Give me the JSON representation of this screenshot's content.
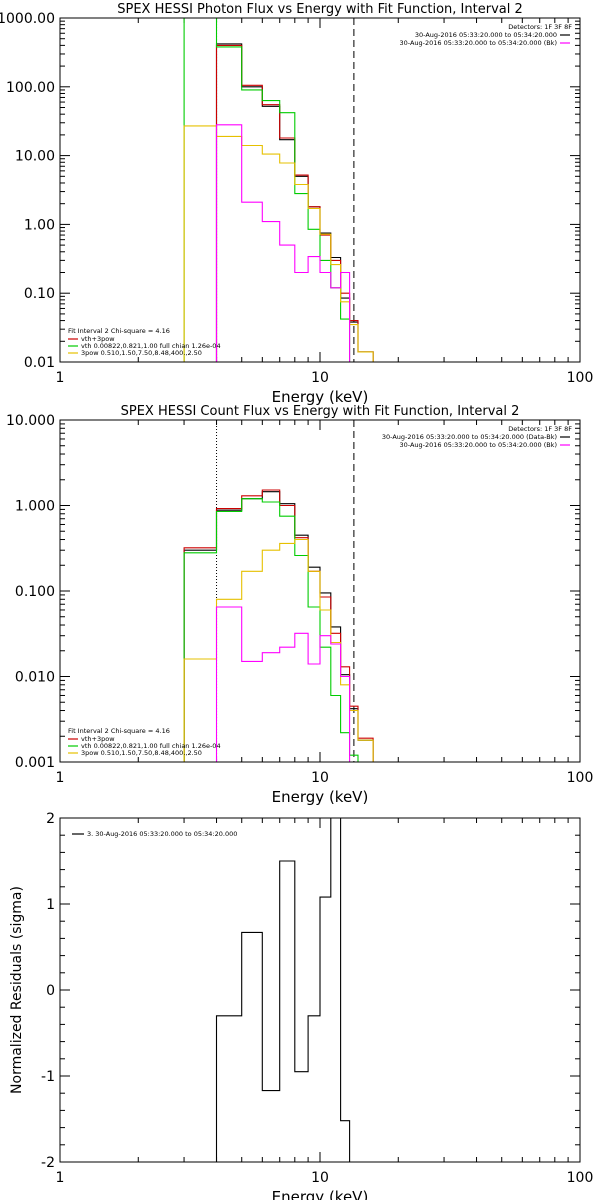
{
  "chart_data": [
    {
      "type": "line",
      "title": "SPEX HESSI Photon Flux vs Energy with Fit Function, Interval 2",
      "xlabel": "Energy (keV)",
      "ylabel": "",
      "x_scale": "log",
      "y_scale": "log",
      "xlim": [
        1,
        100
      ],
      "ylim": [
        0.01,
        1000
      ],
      "x_ticks": [
        "1",
        "10",
        "100"
      ],
      "y_ticks": [
        "0.01",
        "0.10",
        "1.00",
        "10.00",
        "100.00",
        "1000.00"
      ],
      "vertical_lines": [
        {
          "x": 4.0,
          "style": "dotted"
        },
        {
          "x": 13.5,
          "style": "dashed"
        }
      ],
      "legend_top_right": {
        "header": "Detectors: 1F 3F 8F",
        "entries": [
          {
            "label": "30-Aug-2016 05:33:20.000 to 05:34:20.000",
            "color": "#000000"
          },
          {
            "label": "30-Aug-2016 05:33:20.000 to 05:34:20.000 (Bk)",
            "color": "#ff00ff"
          }
        ]
      },
      "legend_bottom_left": {
        "header": "Fit Interval 2   Chi-square = 4.16",
        "entries": [
          {
            "label": "vth+3pow",
            "color": "#cc0000"
          },
          {
            "label": "vth 0.00822,0.821,1.00  full chian 1.26e-04",
            "color": "#00cc00"
          },
          {
            "label": "3pow 0.510,1.50,7.50,8.48,400.,2.50",
            "color": "#e6c000"
          }
        ]
      },
      "bin_edges": [
        3.0,
        4.0,
        5.0,
        6.0,
        7.0,
        8.0,
        9.0,
        10.0,
        11.0,
        12.0,
        13.0,
        14.0,
        16.0,
        18.0
      ],
      "series": [
        {
          "color": "#000000",
          "values": [
            null,
            420,
            100,
            52,
            17,
            5,
            1.8,
            0.75,
            0.33,
            0.085,
            0.038,
            0.014,
            null
          ]
        },
        {
          "color": "#cc0000",
          "values": [
            null,
            400,
            105,
            55,
            18,
            5.2,
            1.8,
            0.7,
            0.3,
            0.1,
            0.04,
            0.014,
            null
          ]
        },
        {
          "color": "#00cc00",
          "values": [
            2000,
            380,
            90,
            63,
            42,
            2.8,
            0.85,
            0.3,
            0.12,
            0.042,
            0.008,
            null,
            null
          ]
        },
        {
          "color": "#e6c000",
          "values": [
            27,
            19,
            14,
            10.5,
            7.8,
            3.8,
            1.7,
            0.72,
            0.26,
            0.075,
            0.035,
            0.014,
            null
          ]
        },
        {
          "color": "#ff00ff",
          "values": [
            null,
            28,
            2.1,
            1.1,
            0.5,
            0.2,
            0.34,
            0.2,
            0.12,
            0.2,
            null,
            null,
            null
          ]
        }
      ]
    },
    {
      "type": "line",
      "title": "SPEX HESSI Count Flux vs Energy with Fit Function, Interval 2",
      "xlabel": "Energy (keV)",
      "ylabel": "",
      "x_scale": "log",
      "y_scale": "log",
      "xlim": [
        1,
        100
      ],
      "ylim": [
        0.001,
        10
      ],
      "x_ticks": [
        "1",
        "10",
        "100"
      ],
      "y_ticks": [
        "0.001",
        "0.010",
        "0.100",
        "1.000",
        "10.000"
      ],
      "vertical_lines": [
        {
          "x": 4.0,
          "style": "dotted"
        },
        {
          "x": 13.5,
          "style": "dashed"
        }
      ],
      "legend_top_right": {
        "header": "Detectors: 1F 3F 8F",
        "entries": [
          {
            "label": "30-Aug-2016 05:33:20.000 to 05:34:20.000 (Data-Bk)",
            "color": "#000000"
          },
          {
            "label": "30-Aug-2016 05:33:20.000 to 05:34:20.000 (Bk)",
            "color": "#ff00ff"
          }
        ]
      },
      "legend_bottom_left": {
        "header": "Fit Interval 2   Chi-square = 4.16",
        "entries": [
          {
            "label": "vth+3pow",
            "color": "#cc0000"
          },
          {
            "label": "vth 0.00822,0.821,1.00  full chian 1.26e-04",
            "color": "#00cc00"
          },
          {
            "label": "3pow 0.510,1.50,7.50,8.48,400.,2.50",
            "color": "#e6c000"
          }
        ]
      },
      "bin_edges": [
        3.0,
        4.0,
        5.0,
        6.0,
        7.0,
        8.0,
        9.0,
        10.0,
        11.0,
        12.0,
        13.0,
        14.0,
        16.0,
        18.0
      ],
      "series": [
        {
          "color": "#000000",
          "values": [
            0.3,
            0.88,
            1.2,
            1.45,
            1.05,
            0.45,
            0.19,
            0.095,
            0.038,
            0.0105,
            0.0042,
            0.0018,
            null
          ]
        },
        {
          "color": "#cc0000",
          "values": [
            0.32,
            0.92,
            1.3,
            1.52,
            1.0,
            0.42,
            0.17,
            0.085,
            0.032,
            0.013,
            0.0045,
            0.0019,
            null
          ]
        },
        {
          "color": "#00cc00",
          "values": [
            0.28,
            0.85,
            1.2,
            1.1,
            0.75,
            0.26,
            0.065,
            0.022,
            0.006,
            0.0022,
            0.0012,
            null,
            null
          ]
        },
        {
          "color": "#e6c000",
          "values": [
            0.016,
            0.08,
            0.17,
            0.3,
            0.36,
            0.4,
            0.17,
            0.06,
            0.025,
            0.008,
            0.004,
            0.0018,
            null
          ]
        },
        {
          "color": "#ff00ff",
          "values": [
            null,
            0.065,
            0.015,
            0.019,
            0.022,
            0.032,
            0.014,
            0.03,
            0.024,
            0.01,
            null,
            null,
            null
          ]
        }
      ]
    },
    {
      "type": "line",
      "title": "",
      "xlabel": "Energy (keV)",
      "ylabel": "Normalized Residuals (sigma)",
      "x_scale": "log",
      "y_scale": "linear",
      "xlim": [
        1,
        100
      ],
      "ylim": [
        -2,
        2
      ],
      "x_ticks": [
        "1",
        "10",
        "100"
      ],
      "y_ticks": [
        "-2",
        "-1",
        "0",
        "1",
        "2"
      ],
      "legend_top_left": {
        "entries": [
          {
            "label": "3. 30-Aug-2016 05:33:20.000 to 05:34:20.000",
            "color": "#000000"
          }
        ]
      },
      "bin_edges": [
        4.0,
        5.0,
        6.0,
        7.0,
        8.0,
        9.0,
        10.0,
        11.0,
        12.0,
        13.0
      ],
      "series": [
        {
          "color": "#000000",
          "values": [
            -0.3,
            0.67,
            -1.17,
            1.5,
            -0.95,
            -0.3,
            1.08,
            2.5,
            -1.52
          ]
        }
      ]
    }
  ]
}
